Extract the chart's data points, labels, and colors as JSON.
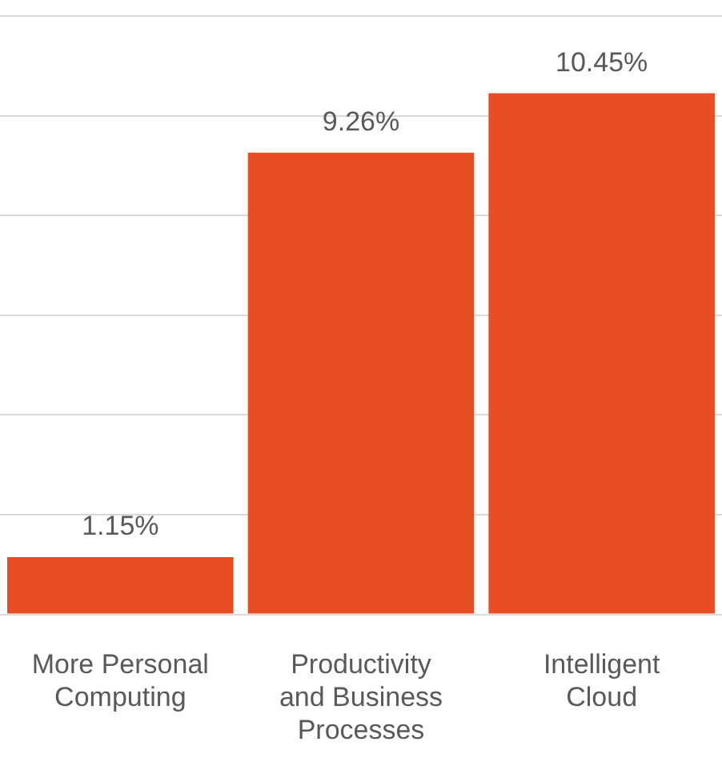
{
  "chart_data": {
    "type": "bar",
    "categories": [
      "More Personal Computing",
      "Productivity and Business Processes",
      "Intelligent Cloud"
    ],
    "values": [
      1.15,
      9.26,
      10.45
    ],
    "value_labels": [
      "1.15%",
      "9.26%",
      "10.45%"
    ],
    "color": "#e84e24",
    "tick_labels": "x",
    "grid": "y"
  }
}
